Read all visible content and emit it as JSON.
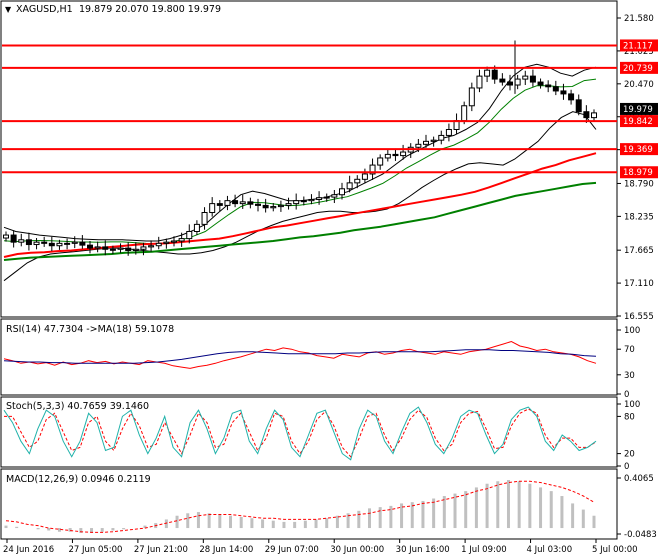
{
  "header": {
    "symbol": "XAGUSD,H1",
    "ohlc": "19.879 20.070 19.800 19.979"
  },
  "colors": {
    "background": "#ffffff",
    "frame": "#000000",
    "candle": "#000000",
    "level_line": "#ff0000",
    "ma_fast": "#ff0000",
    "ma_slow": "#008000",
    "bollinger": "#000000",
    "inner_band": "#008000",
    "rsi_line": "#ff0000",
    "rsi_ma": "#000080",
    "stoch_main": "#20b2aa",
    "stoch_signal": "#ff0000",
    "macd_hist": "#c0c0c0",
    "macd_signal": "#ff0000",
    "current_price_flag": "#000000"
  },
  "chart_data": [
    {
      "type": "candlestick",
      "name": "price",
      "ylim": [
        16.555,
        21.58
      ],
      "yticks": [
        "21.580",
        "21.025",
        "20.470",
        "19.915",
        "19.360",
        "18.790",
        "18.235",
        "17.665",
        "17.110",
        "16.555"
      ],
      "levels": [
        {
          "value": 21.117,
          "label": "21.117"
        },
        {
          "value": 20.739,
          "label": "20.739"
        },
        {
          "value": 19.842,
          "label": "19.842"
        },
        {
          "value": 19.369,
          "label": "19.369"
        },
        {
          "value": 18.979,
          "label": "18.979"
        }
      ],
      "current_price": {
        "value": 19.979,
        "label": "19.979"
      },
      "close_series": [
        17.92,
        17.8,
        17.84,
        17.76,
        17.8,
        17.78,
        17.74,
        17.78,
        17.78,
        17.8,
        17.75,
        17.7,
        17.72,
        17.68,
        17.68,
        17.7,
        17.66,
        17.68,
        17.72,
        17.74,
        17.78,
        17.8,
        17.82,
        17.86,
        17.98,
        18.1,
        18.3,
        18.45,
        18.42,
        18.5,
        18.45,
        18.48,
        18.44,
        18.42,
        18.38,
        18.4,
        18.42,
        18.45,
        18.5,
        18.5,
        18.52,
        18.55,
        18.56,
        18.6,
        18.7,
        18.8,
        18.86,
        18.95,
        19.1,
        19.22,
        19.28,
        19.26,
        19.32,
        19.4,
        19.45,
        19.5,
        19.52,
        19.6,
        19.7,
        19.85,
        20.1,
        20.4,
        20.6,
        20.7,
        20.55,
        20.5,
        20.45,
        20.55,
        20.6,
        20.5,
        20.45,
        20.42,
        20.35,
        20.3,
        20.2,
        20.0,
        19.9,
        19.98
      ],
      "ma_fast_series": [
        17.55,
        17.6,
        17.62,
        17.63,
        17.65,
        17.66,
        17.68,
        17.7,
        17.72,
        17.74,
        17.76,
        17.77,
        17.78,
        17.8,
        17.82,
        17.84,
        17.86,
        17.9,
        17.95,
        18.0,
        18.05,
        18.08,
        18.12,
        18.16,
        18.2,
        18.24,
        18.28,
        18.32,
        18.36,
        18.4,
        18.44,
        18.48,
        18.52,
        18.56,
        18.6,
        18.65,
        18.72,
        18.8,
        18.88,
        18.96,
        19.04,
        19.1,
        19.18,
        19.24,
        19.3
      ],
      "ma_slow_series": [
        17.5,
        17.52,
        17.54,
        17.55,
        17.56,
        17.57,
        17.58,
        17.59,
        17.6,
        17.62,
        17.63,
        17.64,
        17.66,
        17.68,
        17.7,
        17.72,
        17.74,
        17.76,
        17.78,
        17.8,
        17.82,
        17.85,
        17.88,
        17.9,
        17.93,
        17.96,
        18.0,
        18.03,
        18.06,
        18.1,
        18.14,
        18.18,
        18.22,
        18.28,
        18.34,
        18.4,
        18.46,
        18.52,
        18.58,
        18.62,
        18.66,
        18.7,
        18.74,
        18.78,
        18.8
      ],
      "bb_upper_series": [
        18.05,
        17.98,
        17.95,
        17.92,
        17.9,
        17.88,
        17.86,
        17.85,
        17.84,
        17.84,
        17.84,
        17.83,
        17.82,
        17.82,
        17.86,
        17.92,
        18.0,
        18.1,
        18.28,
        18.45,
        18.6,
        18.66,
        18.62,
        18.56,
        18.5,
        18.5,
        18.52,
        18.55,
        18.6,
        18.65,
        18.75,
        18.85,
        18.95,
        19.1,
        19.25,
        19.35,
        19.45,
        19.55,
        19.6,
        19.7,
        19.82,
        20.05,
        20.35,
        20.6,
        20.75,
        20.8,
        20.75,
        20.65,
        20.6,
        20.7,
        20.75
      ],
      "bb_lower_series": [
        17.15,
        17.3,
        17.45,
        17.55,
        17.6,
        17.62,
        17.64,
        17.66,
        17.68,
        17.7,
        17.7,
        17.68,
        17.66,
        17.64,
        17.62,
        17.6,
        17.6,
        17.62,
        17.66,
        17.72,
        17.8,
        17.9,
        18.0,
        18.08,
        18.15,
        18.2,
        18.25,
        18.3,
        18.32,
        18.32,
        18.3,
        18.3,
        18.32,
        18.36,
        18.45,
        18.58,
        18.72,
        18.84,
        18.95,
        19.04,
        19.12,
        19.14,
        19.12,
        19.1,
        19.2,
        19.35,
        19.5,
        19.72,
        19.9,
        20.0,
        19.95,
        19.7
      ]
    },
    {
      "type": "line",
      "name": "RSI",
      "label": "RSI(14) 47.7304 ->MA(18) 59.1078",
      "ylim": [
        0,
        100
      ],
      "yticks": [
        "100",
        "70",
        "30",
        "0"
      ],
      "rsi_series": [
        55,
        52,
        48,
        50,
        47,
        49,
        45,
        50,
        46,
        48,
        52,
        49,
        51,
        47,
        50,
        48,
        46,
        52,
        50,
        48,
        44,
        42,
        40,
        43,
        45,
        48,
        52,
        55,
        58,
        62,
        66,
        70,
        68,
        72,
        70,
        66,
        64,
        60,
        58,
        56,
        62,
        60,
        58,
        64,
        66,
        62,
        64,
        68,
        70,
        66,
        64,
        62,
        66,
        64,
        62,
        66,
        68,
        70,
        74,
        78,
        82,
        75,
        72,
        68,
        70,
        66,
        64,
        62,
        58,
        52,
        48
      ],
      "ma_series": [
        52,
        51,
        50,
        50,
        49,
        49,
        48,
        48,
        48,
        48,
        48,
        48,
        49,
        50,
        52,
        54,
        57,
        60,
        63,
        65,
        66,
        66,
        65,
        64,
        63,
        63,
        63,
        63,
        63,
        64,
        64,
        65,
        66,
        66,
        66,
        66,
        66,
        67,
        68,
        69,
        69,
        69,
        68,
        68,
        67,
        66,
        65,
        63,
        62,
        60,
        59
      ]
    },
    {
      "type": "line",
      "name": "Stochastic",
      "label": "Stoch(5,3,3) 40.7659 39.1460",
      "ylim": [
        0,
        100
      ],
      "yticks": [
        "100",
        "80",
        "20",
        "0"
      ],
      "main_series": [
        90,
        70,
        40,
        20,
        60,
        90,
        80,
        40,
        15,
        40,
        85,
        70,
        25,
        30,
        80,
        90,
        50,
        20,
        45,
        80,
        30,
        15,
        70,
        90,
        60,
        20,
        45,
        85,
        90,
        40,
        20,
        60,
        90,
        75,
        30,
        15,
        50,
        85,
        90,
        55,
        20,
        10,
        60,
        90,
        80,
        40,
        20,
        55,
        85,
        95,
        70,
        35,
        20,
        45,
        80,
        90,
        85,
        50,
        20,
        35,
        75,
        90,
        95,
        80,
        40,
        25,
        50,
        40,
        25,
        30,
        40
      ],
      "signal_series": [
        80,
        80,
        55,
        30,
        40,
        75,
        85,
        55,
        25,
        30,
        70,
        80,
        40,
        25,
        60,
        85,
        65,
        30,
        35,
        70,
        45,
        20,
        50,
        85,
        70,
        30,
        35,
        70,
        85,
        55,
        25,
        45,
        85,
        80,
        40,
        20,
        40,
        75,
        88,
        65,
        30,
        15,
        45,
        80,
        85,
        50,
        25,
        45,
        75,
        90,
        78,
        45,
        25,
        35,
        70,
        85,
        88,
        60,
        28,
        30,
        65,
        85,
        92,
        85,
        50,
        30,
        45,
        45,
        30,
        30,
        39
      ]
    },
    {
      "type": "bar",
      "name": "MACD",
      "label": "MACD(12,26,9) 0.0946 0.2119",
      "ylim": [
        -0.0483,
        0.4065
      ],
      "yticks": [
        "0.4065",
        "-0.0483"
      ],
      "histogram": [
        0.02,
        0.01,
        0.0,
        -0.01,
        -0.02,
        -0.03,
        -0.03,
        -0.04,
        -0.04,
        -0.03,
        -0.02,
        -0.01,
        0.0,
        0.02,
        0.04,
        0.07,
        0.1,
        0.12,
        0.13,
        0.12,
        0.11,
        0.1,
        0.09,
        0.08,
        0.07,
        0.06,
        0.05,
        0.05,
        0.06,
        0.07,
        0.08,
        0.1,
        0.12,
        0.14,
        0.16,
        0.17,
        0.18,
        0.2,
        0.21,
        0.22,
        0.24,
        0.26,
        0.28,
        0.3,
        0.33,
        0.36,
        0.38,
        0.39,
        0.38,
        0.36,
        0.33,
        0.3,
        0.26,
        0.2,
        0.15,
        0.1
      ],
      "signal": [
        0.06,
        0.05,
        0.03,
        0.02,
        0.0,
        -0.01,
        -0.02,
        -0.03,
        -0.035,
        -0.035,
        -0.03,
        -0.02,
        -0.01,
        0.0,
        0.02,
        0.04,
        0.06,
        0.08,
        0.1,
        0.11,
        0.11,
        0.11,
        0.1,
        0.09,
        0.08,
        0.08,
        0.07,
        0.07,
        0.07,
        0.07,
        0.08,
        0.09,
        0.1,
        0.11,
        0.12,
        0.14,
        0.15,
        0.17,
        0.18,
        0.2,
        0.21,
        0.23,
        0.25,
        0.27,
        0.3,
        0.32,
        0.35,
        0.37,
        0.38,
        0.38,
        0.37,
        0.35,
        0.33,
        0.3,
        0.26,
        0.21
      ]
    }
  ],
  "x_axis": {
    "labels": [
      "24 Jun 2016",
      "27 Jun 05:00",
      "27 Jun 21:00",
      "28 Jun 14:00",
      "29 Jun 07:00",
      "30 Jun 00:00",
      "30 Jun 16:00",
      "1 Jul 09:00",
      "4 Jul 03:00",
      "5 Jul 00:00"
    ]
  }
}
